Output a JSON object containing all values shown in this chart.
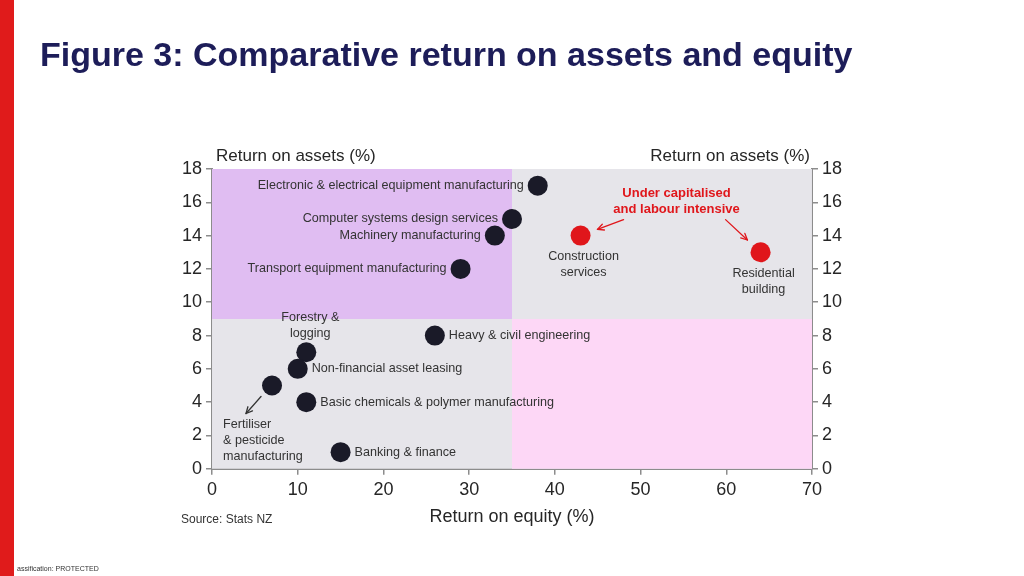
{
  "chart_data": {
    "type": "scatter",
    "title": "Figure 3: Comparative return on assets and equity",
    "xlabel": "Return on equity (%)",
    "ylabel": "Return on assets (%)",
    "y2label": "Return on assets (%)",
    "x": [
      38,
      35,
      33,
      29,
      43,
      64,
      26,
      11,
      10,
      7,
      11,
      15
    ],
    "values": [
      17,
      15,
      14,
      12,
      14,
      13,
      8,
      7,
      6,
      5,
      4,
      1
    ],
    "colors": [
      "#1a1a28",
      "#1a1a28",
      "#1a1a28",
      "#1a1a28",
      "#e0161b",
      "#e0161b",
      "#1a1a28",
      "#1a1a28",
      "#1a1a28",
      "#1a1a28",
      "#1a1a28",
      "#1a1a28"
    ],
    "marker": "circle",
    "xlim": [
      0,
      70
    ],
    "xticks": [
      0,
      10,
      20,
      30,
      40,
      50,
      60,
      70
    ],
    "ylim": [
      0,
      18
    ],
    "yticks": [
      0,
      2,
      4,
      6,
      8,
      10,
      12,
      14,
      16,
      18
    ],
    "y2lim": [
      0,
      18
    ],
    "y2ticks": [
      0,
      2,
      4,
      6,
      8,
      10,
      12,
      14,
      16,
      18
    ],
    "bands": [
      {
        "axis": "x",
        "from": 0,
        "to": 35,
        "color": "#e0bdf2"
      },
      {
        "axis": "y",
        "from": 0,
        "to": 9,
        "color": "#fdd7f6"
      }
    ],
    "annotations": [
      {
        "text": "Electronic & electrical equipment manufacturing",
        "x": 38,
        "y": 17
      },
      {
        "text": "Computer systems design services",
        "x": 35,
        "y": 15
      },
      {
        "text": "Machinery manufacturing",
        "x": 33,
        "y": 14
      },
      {
        "text": "Transport equipment manufacturing",
        "x": 29,
        "y": 12
      },
      {
        "text": "Construction\nservices",
        "x": 43,
        "y": 14
      },
      {
        "text": "Residential\nbuilding",
        "x": 64,
        "y": 13
      },
      {
        "text": "Heavy & civil engineering",
        "x": 26,
        "y": 8
      },
      {
        "text": "Forestry &\nlogging",
        "x": 11,
        "y": 7
      },
      {
        "text": "Non-financial asset leasing",
        "x": 10,
        "y": 6
      },
      {
        "text": "Fertiliser\n& pesticide\nmanufacturing",
        "x": 7,
        "y": 5
      },
      {
        "text": "Basic chemicals & polymer manufacturing",
        "x": 11,
        "y": 4
      },
      {
        "text": "Banking & finance",
        "x": 15,
        "y": 1
      },
      "Under capitalised\nand labour intensive",
      "Source: Stats NZ",
      "assification: PROTECTED"
    ]
  }
}
